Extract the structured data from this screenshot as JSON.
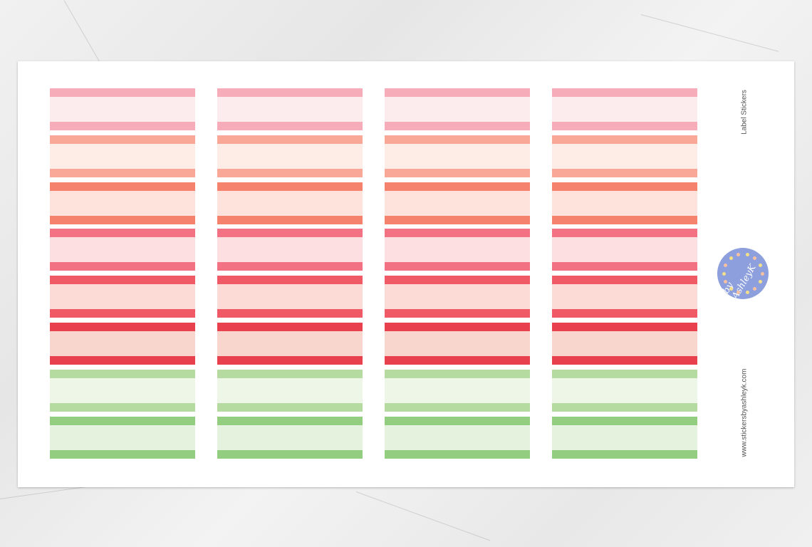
{
  "sheet": {
    "title": "Label Stickers",
    "website": "www.stickersbyashleyk.com",
    "logo_text": "by AshleyK",
    "logo_color": "#8d9fdc",
    "columns": 4,
    "stickers": [
      {
        "band": "#f7adb9",
        "fill": "#fdecee"
      },
      {
        "band": "#f9a898",
        "fill": "#feece6"
      },
      {
        "band": "#f4826d",
        "fill": "#fde3db"
      },
      {
        "band": "#f27284",
        "fill": "#fddfe2"
      },
      {
        "band": "#f05a66",
        "fill": "#fcdbd7"
      },
      {
        "band": "#e8404c",
        "fill": "#f8d5cd"
      },
      {
        "band": "#b5dba0",
        "fill": "#eef6e8"
      },
      {
        "band": "#93cd80",
        "fill": "#e5f2de"
      }
    ]
  }
}
